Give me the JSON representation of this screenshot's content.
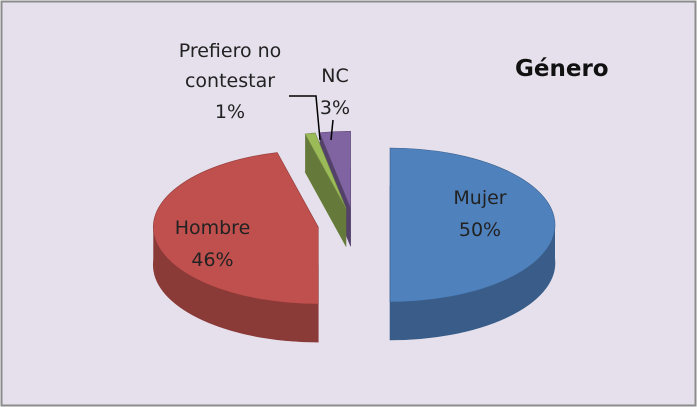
{
  "chart_data": {
    "type": "pie",
    "title": "Género",
    "categories": [
      "Mujer",
      "Hombre",
      "Prefiero no contestar",
      "NC"
    ],
    "values": [
      50,
      46,
      1,
      3
    ],
    "value_labels": [
      "50%",
      "46%",
      "1%",
      "3%"
    ],
    "colors": [
      "#4f81bd",
      "#c0504d",
      "#9bbb59",
      "#8064a2"
    ],
    "exploded": true,
    "three_d": true
  }
}
